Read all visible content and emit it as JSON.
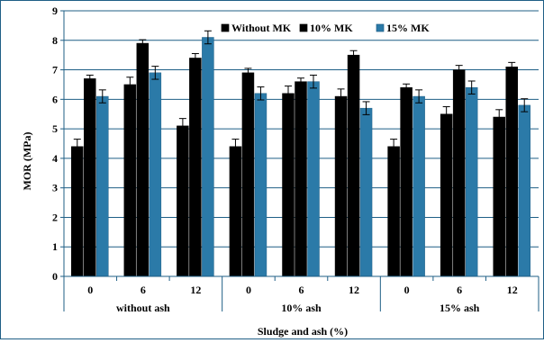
{
  "chart_data": {
    "type": "bar",
    "title": "",
    "ylabel": "MOR (MPa)",
    "xlabel": "Sludge and ash (%)",
    "ylim": [
      0,
      9
    ],
    "yticks": [
      0,
      1,
      2,
      3,
      4,
      5,
      6,
      7,
      8,
      9
    ],
    "grid": true,
    "legend_position": "top-center",
    "groups": [
      "without  ash",
      "10% ash",
      "15% ash"
    ],
    "categories": [
      "0",
      "6",
      "12",
      "0",
      "6",
      "12",
      "0",
      "6",
      "12"
    ],
    "series": [
      {
        "name": "Without MK",
        "color": "#000000",
        "values": [
          4.4,
          6.5,
          5.1,
          4.4,
          6.2,
          6.1,
          4.4,
          5.5,
          5.4
        ],
        "errors": [
          0.25,
          0.25,
          0.25,
          0.25,
          0.25,
          0.25,
          0.25,
          0.25,
          0.25
        ]
      },
      {
        "name": "10% MK",
        "color": "#000000",
        "values": [
          6.7,
          7.9,
          7.4,
          6.9,
          6.6,
          7.5,
          6.4,
          7.0,
          7.1
        ],
        "errors": [
          0.12,
          0.12,
          0.15,
          0.15,
          0.12,
          0.15,
          0.12,
          0.15,
          0.15
        ]
      },
      {
        "name": "15% MK",
        "color": "#2b7aa8",
        "values": [
          6.1,
          6.9,
          8.1,
          6.2,
          6.6,
          5.7,
          6.1,
          6.4,
          5.8
        ],
        "errors": [
          0.22,
          0.22,
          0.22,
          0.22,
          0.22,
          0.22,
          0.22,
          0.22,
          0.22
        ]
      }
    ]
  }
}
